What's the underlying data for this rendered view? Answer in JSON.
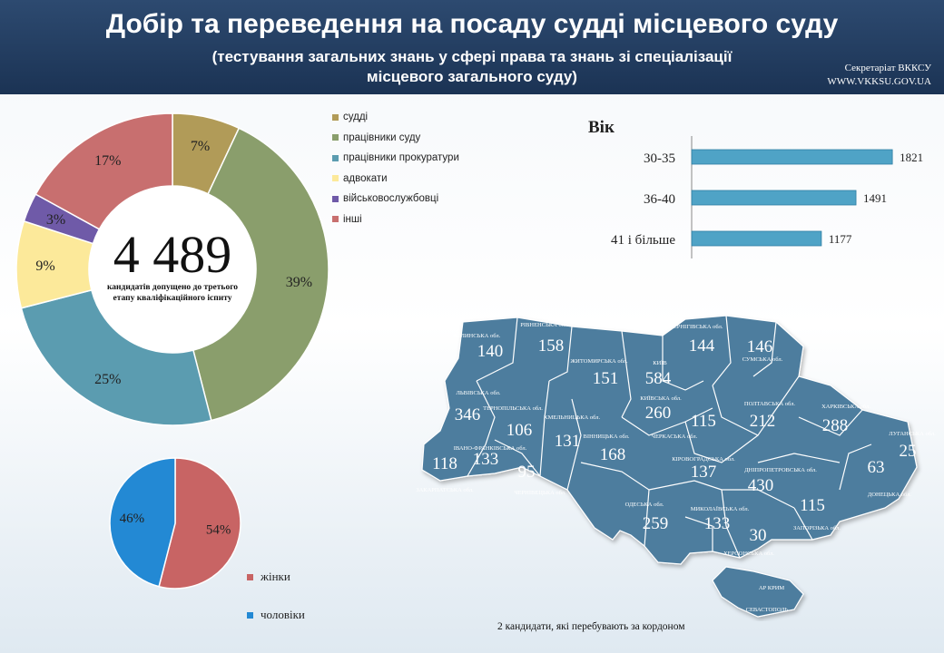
{
  "header": {
    "title": "Добір та переведення на посаду судді місцевого суду",
    "subtitle_line1": "(тестування загальних знань у сфері права та знань зі спеціалізації",
    "subtitle_line2": "місцевого загального суду)",
    "org_line1": "Секретаріат ВККСУ",
    "org_line2": "WWW.VKKSU.GOV.UA"
  },
  "donut_center": {
    "total": "4 489",
    "caption_line1": "кандидатів допущено до третього",
    "caption_line2": "етапу кваліфікаційного іспиту"
  },
  "footnote": "2 кандидати,  які перебувають за кордоном",
  "chart_data": [
    {
      "type": "pie",
      "categories": [
        "судді",
        "працівники суду",
        "працівники прокуратури",
        "адвокати",
        "військовослужбовці",
        "інші"
      ],
      "values": [
        7,
        39,
        25,
        9,
        3,
        17
      ],
      "labels": [
        "7%",
        "39%",
        "25%",
        "9%",
        "3%",
        "17%"
      ],
      "colors": [
        "#b19b58",
        "#8a9e6c",
        "#5b9cb0",
        "#fce99a",
        "#6f5aa8",
        "#c86f6f"
      ],
      "legend": "right"
    },
    {
      "type": "bar",
      "orientation": "horizontal",
      "title": "Вік",
      "categories": [
        "30-35",
        "36-40",
        "41 і більше"
      ],
      "values": [
        1821,
        1491,
        1177
      ],
      "xlim": [
        0,
        2100
      ],
      "color": "#4fa3c6"
    },
    {
      "type": "pie",
      "categories": [
        "жінки",
        "чоловіки"
      ],
      "values": [
        54,
        46
      ],
      "labels": [
        "54%",
        "46%"
      ],
      "colors": [
        "#c86464",
        "#2389d4"
      ],
      "legend": "right"
    }
  ],
  "map": {
    "regions": [
      {
        "name": "ВОЛИНСЬКА обл.",
        "value": "140"
      },
      {
        "name": "РІВНЕНСЬКА обл.",
        "value": "158"
      },
      {
        "name": "ЖИТОМИРСЬКА обл.",
        "value": "151"
      },
      {
        "name": "КИЇВ",
        "value": "584"
      },
      {
        "name": "ЧЕРНІГІВСЬКА обл.",
        "value": "144"
      },
      {
        "name": "СУМСЬКА обл.",
        "value": "146"
      },
      {
        "name": "ЛЬВІВСЬКА обл.",
        "value": "346"
      },
      {
        "name": "ТЕРНОПІЛЬСЬКА обл.",
        "value": "106"
      },
      {
        "name": "ХМЕЛЬНИЦЬКА обл.",
        "value": "131"
      },
      {
        "name": "КИЇВСЬКА обл.",
        "value": "260"
      },
      {
        "name": "ЧЕРКАСЬКА обл.",
        "value": "115"
      },
      {
        "name": "ПОЛТАВСЬКА обл.",
        "value": "212"
      },
      {
        "name": "ХАРКІВСЬКА обл.",
        "value": "288"
      },
      {
        "name": "ЛУГАНСЬКА обл.",
        "value": "25"
      },
      {
        "name": "ЗАКАРПАТСЬКА обл.",
        "value": "118"
      },
      {
        "name": "ІВАНО-ФРАНКІВСЬКА обл.",
        "value": "133"
      },
      {
        "name": "ЧЕРНІВЕЦЬКА обл.",
        "value": "95"
      },
      {
        "name": "ВІННИЦЬКА обл.",
        "value": "168"
      },
      {
        "name": "КІРОВОГРАДСЬКА обл.",
        "value": "137"
      },
      {
        "name": "ДНІПРОПЕТРОВСЬКА обл.",
        "value": "430"
      },
      {
        "name": "ДОНЕЦЬКА обл.",
        "value": "63"
      },
      {
        "name": "ОДЕСЬКА обл.",
        "value": "259"
      },
      {
        "name": "МИКОЛАЇВСЬКА обл.",
        "value": "133"
      },
      {
        "name": "ЗАПОРІЗЬКА обл.",
        "value": "115"
      },
      {
        "name": "ХЕРСОНСЬКА обл.",
        "value": "30"
      },
      {
        "name": "АР КРИМ",
        "value": ""
      },
      {
        "name": "СЕВАСТОПОЛЬ",
        "value": ""
      }
    ]
  }
}
